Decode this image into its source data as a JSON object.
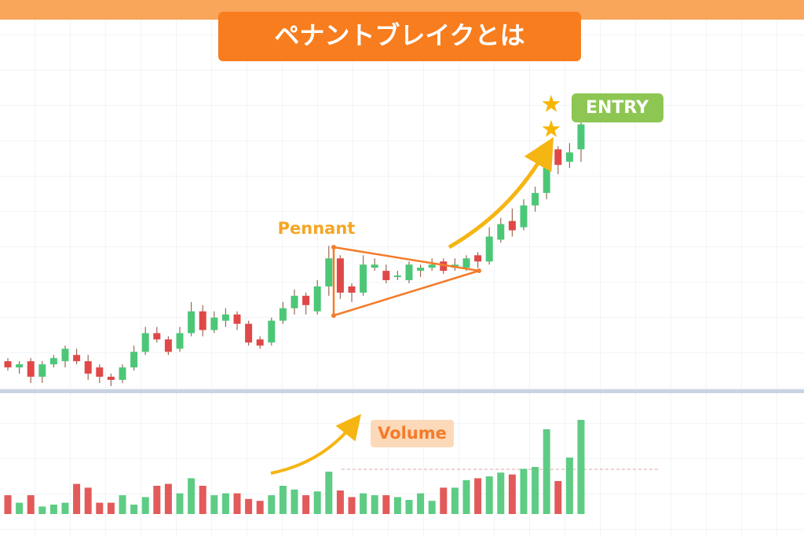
{
  "chart_data": {
    "type": "candlestick",
    "title": "ペナントブレイクとは",
    "pattern_label": "Pennant",
    "entry_label": "ENTRY",
    "volume_label": "Volume",
    "open": [
      8,
      6,
      8,
      3,
      7,
      8,
      10,
      8,
      6,
      3,
      2,
      6,
      11,
      17,
      15,
      12,
      17,
      24,
      18,
      21,
      23,
      20,
      15,
      14,
      21,
      25,
      29,
      24,
      32,
      41,
      32,
      30,
      38,
      37,
      35,
      34,
      37,
      38,
      40,
      38,
      38,
      42,
      40,
      47,
      53,
      51,
      58,
      62,
      76,
      72,
      76
    ],
    "high": [
      9,
      8,
      9,
      8,
      10,
      13,
      12,
      10,
      7,
      4,
      7,
      13,
      19,
      19,
      16,
      19,
      27,
      26,
      24,
      25,
      24,
      21,
      16,
      22,
      27,
      31,
      30,
      34,
      45,
      42,
      33,
      42,
      41,
      39,
      37,
      40,
      39,
      41,
      41,
      41,
      42,
      43,
      51,
      54,
      57,
      60,
      64,
      78,
      77,
      78,
      86
    ],
    "low": [
      5,
      4,
      1,
      1,
      6,
      6,
      7,
      2,
      1,
      0,
      1,
      5,
      10,
      14,
      10,
      11,
      16,
      16,
      17,
      19,
      18,
      13,
      12,
      13,
      20,
      23,
      23,
      23,
      29,
      28,
      27,
      29,
      37,
      33,
      34,
      33,
      35,
      37,
      36,
      37,
      37,
      38,
      39,
      46,
      48,
      50,
      56,
      60,
      68,
      70,
      72
    ],
    "close": [
      6,
      7,
      3,
      7,
      9,
      12,
      8,
      4,
      3,
      2,
      6,
      11,
      17,
      15,
      11,
      17,
      24,
      18,
      22,
      23,
      20,
      14,
      13,
      21,
      25,
      29,
      26,
      32,
      41,
      30,
      30,
      39,
      39,
      34,
      35.5,
      39,
      38,
      39,
      37,
      39,
      41,
      40,
      48,
      52,
      50,
      58,
      62,
      76,
      71,
      75,
      84
    ],
    "ylim": [
      0,
      100
    ],
    "volume": [
      20,
      12,
      20,
      8,
      10,
      12,
      32,
      28,
      12,
      12,
      20,
      10,
      18,
      30,
      32,
      22,
      38,
      30,
      20,
      22,
      22,
      16,
      14,
      20,
      30,
      26,
      20,
      24,
      45,
      25,
      18,
      22,
      20,
      20,
      18,
      15,
      22,
      14,
      28,
      28,
      36,
      38,
      40,
      44,
      42,
      48,
      50,
      90,
      35,
      60,
      100
    ],
    "volume_ylim": [
      0,
      100
    ],
    "up_color": "#4cc777",
    "down_color": "#e04848",
    "grid": true
  }
}
